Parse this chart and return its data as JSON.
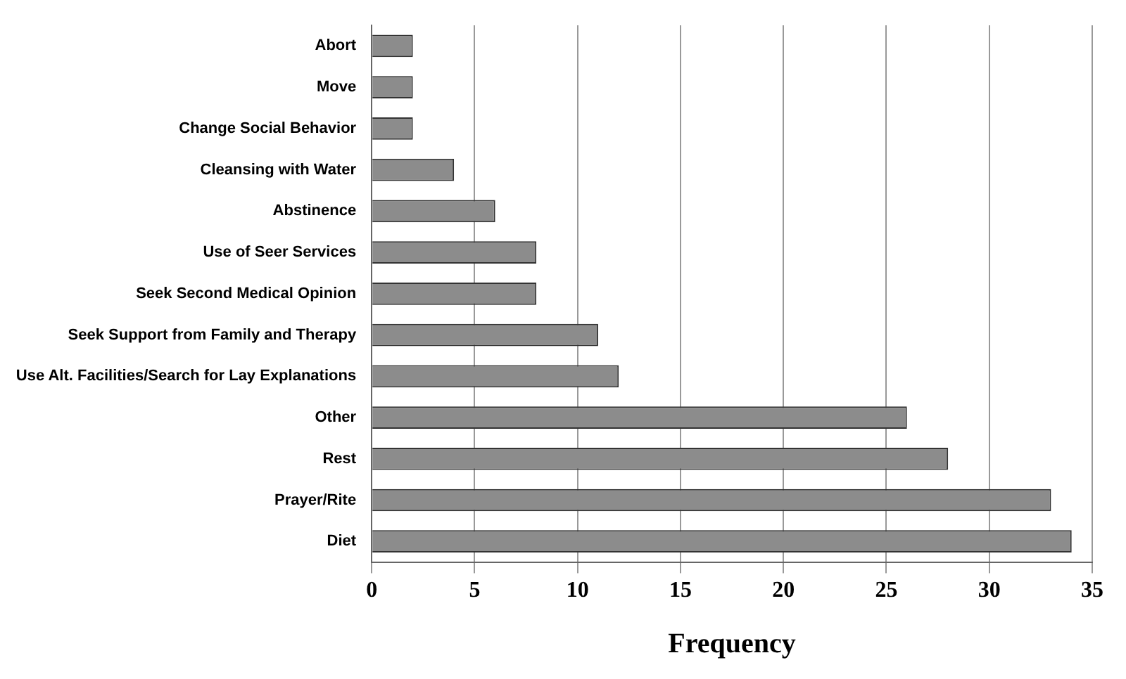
{
  "chart_data": {
    "type": "bar",
    "orientation": "horizontal",
    "xlabel": "Frequency",
    "categories": [
      "Abort",
      "Move",
      "Change Social Behavior",
      "Cleansing with Water",
      "Abstinence",
      "Use of Seer Services",
      "Seek Second Medical Opinion",
      "Seek Support from Family and Therapy",
      "Use Alt. Facilities/Search for Lay Explanations",
      "Other",
      "Rest",
      "Prayer/Rite",
      "Diet"
    ],
    "values": [
      2,
      2,
      2,
      4,
      6,
      8,
      8,
      11,
      12,
      26,
      28,
      33,
      34
    ],
    "color": "#8c8c8c",
    "xlim": [
      0,
      35
    ],
    "xticks": [
      0,
      5,
      10,
      15,
      20,
      25,
      30,
      35
    ],
    "grid": "x",
    "legend": false
  }
}
